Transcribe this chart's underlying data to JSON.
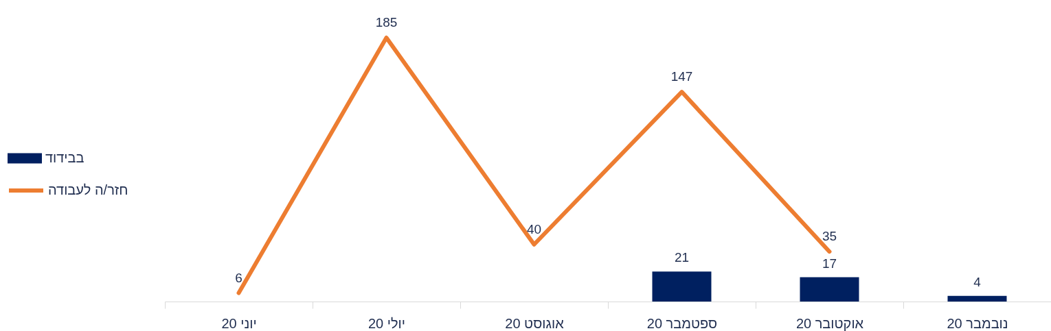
{
  "chart_data": {
    "type": "bar",
    "categories": [
      "יוני 20",
      "יולי 20",
      "אוגוסט 20",
      "ספטמבר 20",
      "אוקטובר 20",
      "נובמבר 20"
    ],
    "series": [
      {
        "name": "בבידוד",
        "color": "#002060",
        "values": [
          null,
          null,
          null,
          21,
          17,
          4
        ]
      },
      {
        "name": "חזר/ה לעבודה",
        "type": "line",
        "color": "#ed7d31",
        "values": [
          6,
          185,
          40,
          147,
          35,
          null
        ]
      }
    ],
    "data_labels": true,
    "legend": "left"
  }
}
